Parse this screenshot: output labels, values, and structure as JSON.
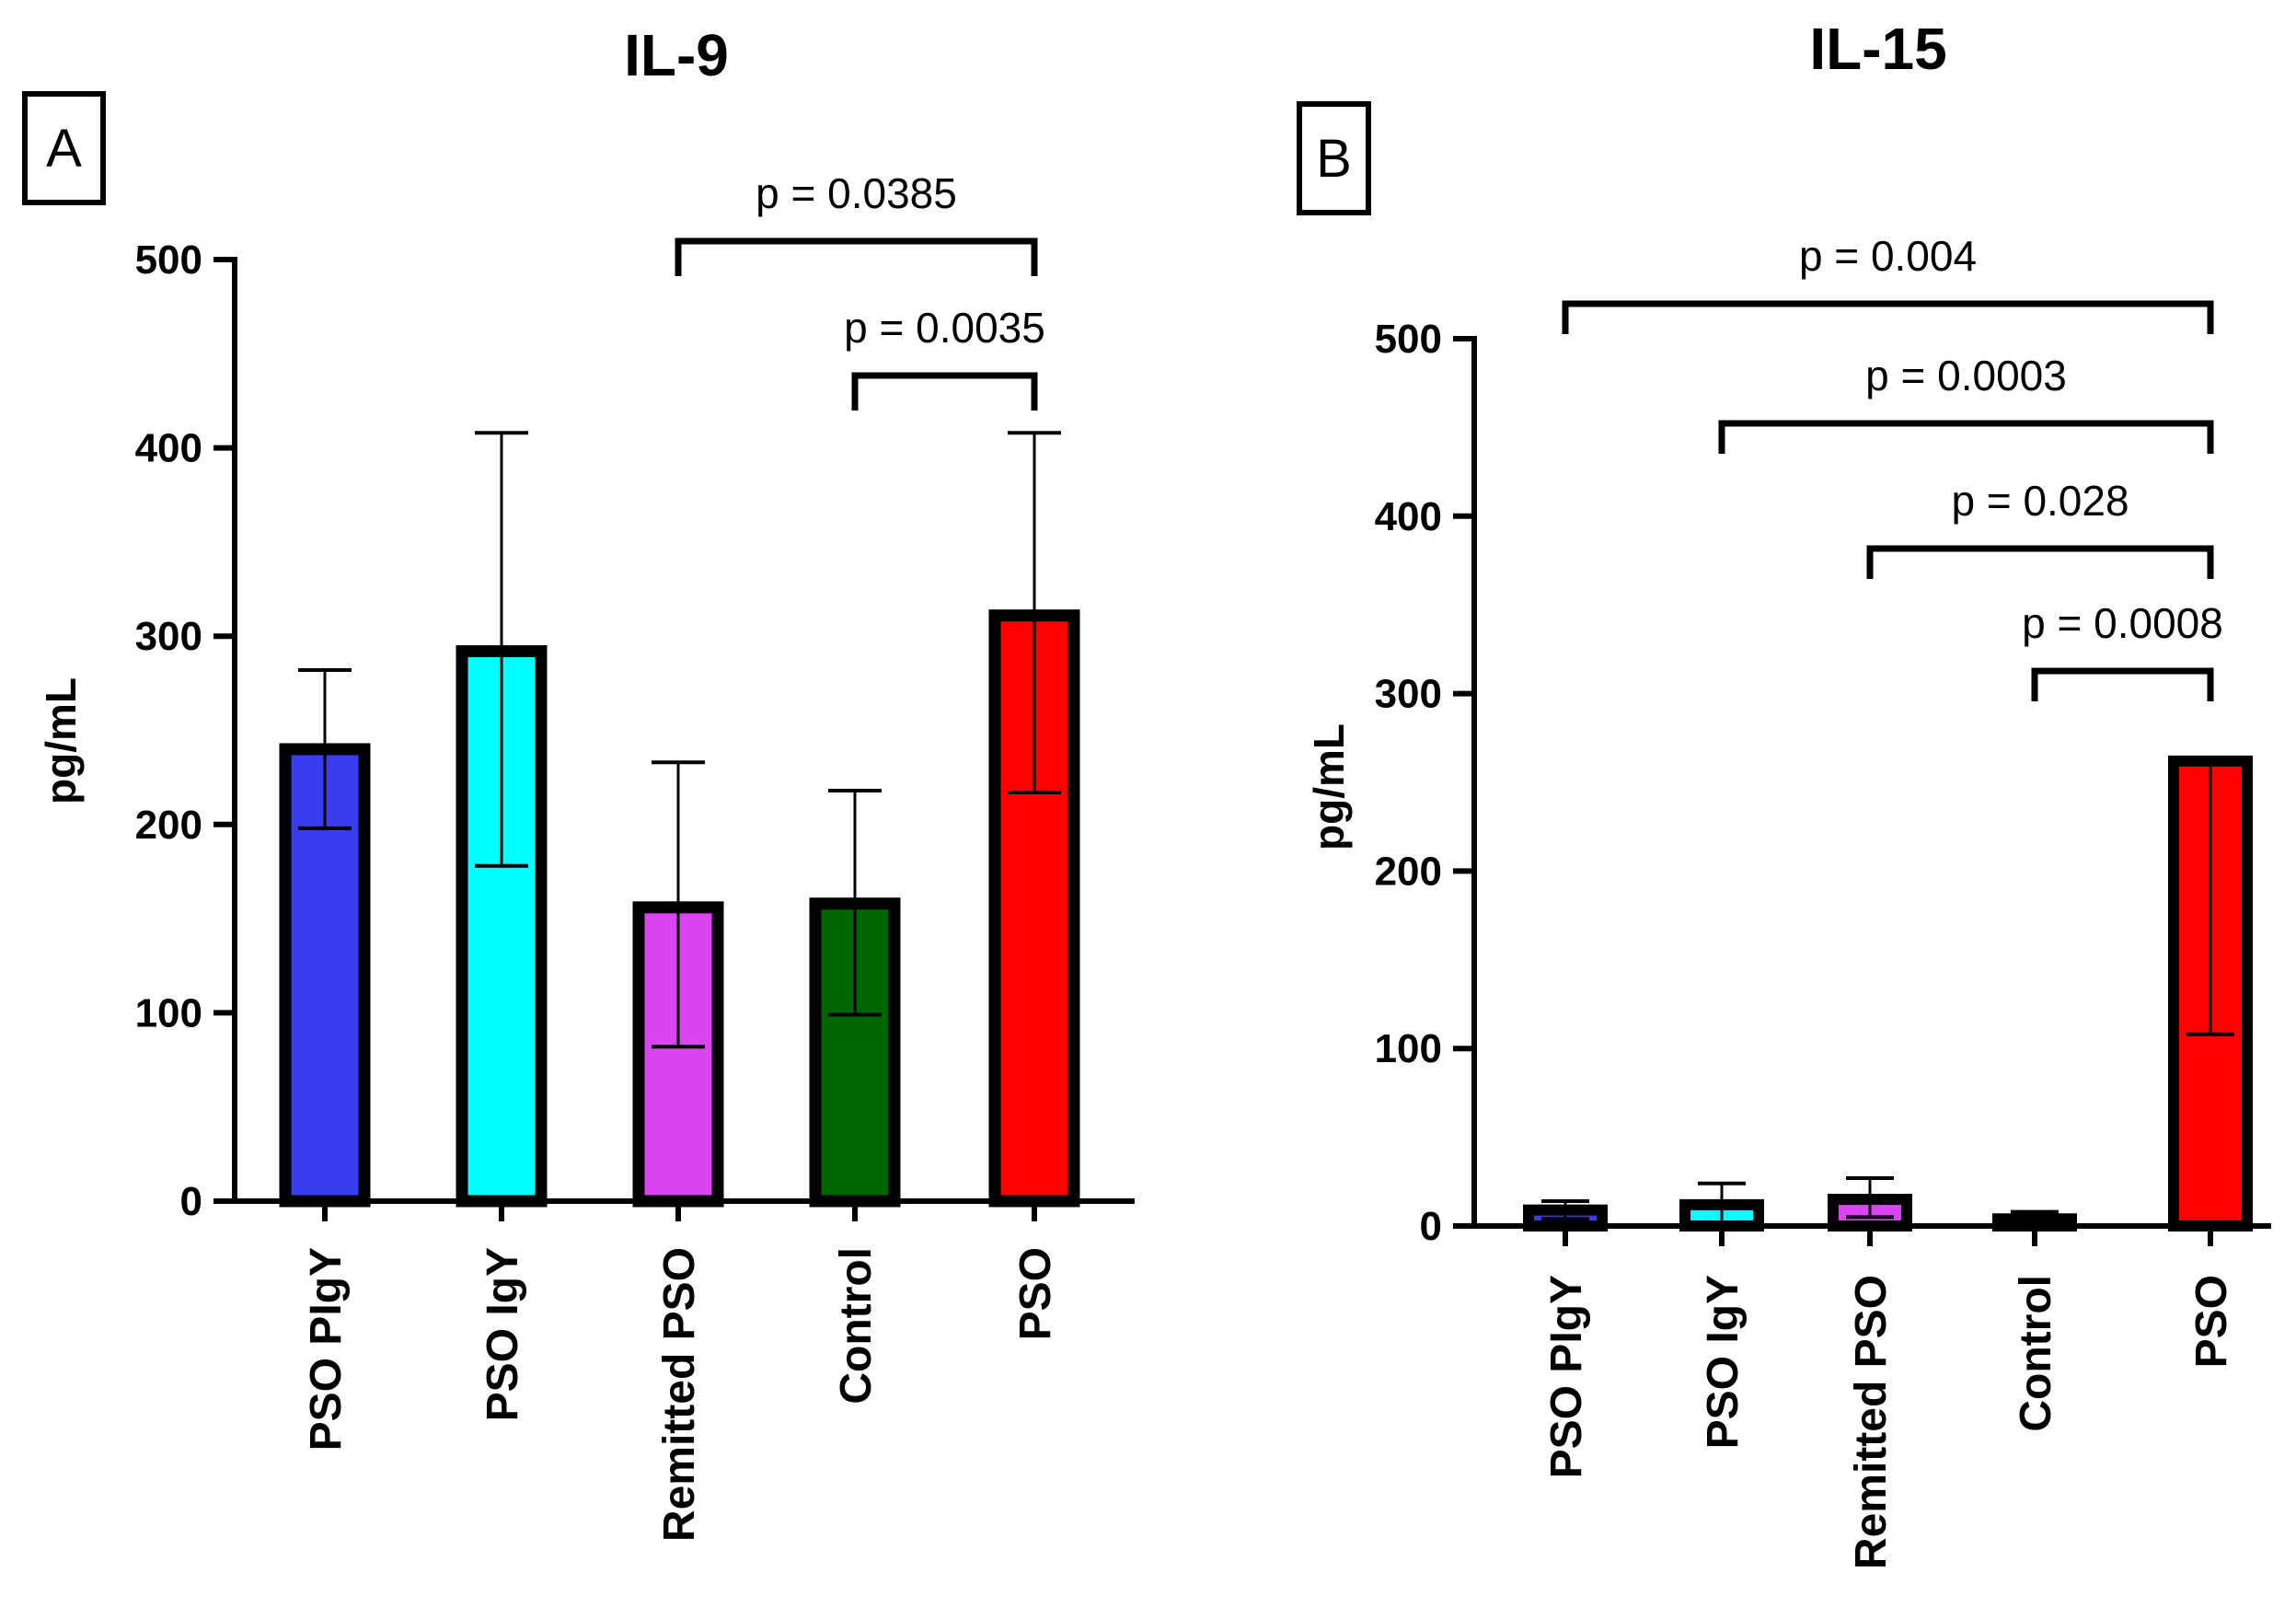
{
  "chart_data": [
    {
      "type": "bar",
      "panel_label": "A",
      "title": "IL-9",
      "ylabel": "pg/mL",
      "xlabel": "",
      "ylim": [
        0,
        500
      ],
      "yticks": [
        0,
        100,
        200,
        300,
        400,
        500
      ],
      "categories": [
        "PSO PIgY",
        "PSO IgY",
        "Remitted PSO",
        "Control",
        "PSO"
      ],
      "values": [
        240,
        292,
        156,
        158,
        311
      ],
      "error_upper": [
        282,
        408,
        233,
        218,
        408
      ],
      "error_lower": [
        198,
        178,
        82,
        99,
        217
      ],
      "colors": [
        "#3b3bf0",
        "#00ffff",
        "#d946ef",
        "#006400",
        "#ff0000"
      ],
      "comparisons": [
        {
          "from": "Remitted PSO",
          "to": "PSO",
          "label": "p = 0.0385"
        },
        {
          "from": "Control",
          "to": "PSO",
          "label": "p = 0.0035"
        }
      ]
    },
    {
      "type": "bar",
      "panel_label": "B",
      "title": "IL-15",
      "ylabel": "pg/mL",
      "xlabel": "",
      "ylim": [
        0,
        500
      ],
      "yticks": [
        0,
        100,
        200,
        300,
        400,
        500
      ],
      "categories": [
        "PSO PIgY",
        "PSO IgY",
        "Remitted PSO",
        "Control",
        "PSO"
      ],
      "values": [
        9,
        12,
        15,
        4,
        262
      ],
      "error_upper": [
        14,
        24,
        27,
        8,
        262
      ],
      "error_lower": [
        4,
        2,
        5,
        1,
        108
      ],
      "colors": [
        "#3b3bf0",
        "#00ffff",
        "#d946ef",
        "#006400",
        "#ff0000"
      ],
      "comparisons": [
        {
          "from": "PSO PIgY",
          "to": "PSO",
          "label": "p = 0.004"
        },
        {
          "from": "PSO IgY",
          "to": "PSO",
          "label": "p = 0.0003"
        },
        {
          "from": "Remitted PSO",
          "to": "PSO",
          "label": "p = 0.028"
        },
        {
          "from": "Control",
          "to": "PSO",
          "label": "p = 0.0008"
        }
      ]
    }
  ]
}
